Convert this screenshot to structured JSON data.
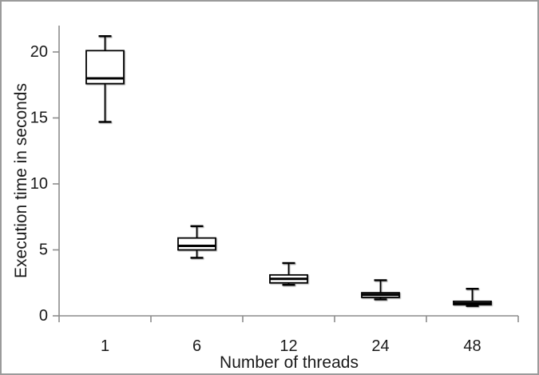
{
  "chart_data": {
    "type": "box",
    "title": "",
    "xlabel": "Number of threads",
    "ylabel": "Execution time in seconds",
    "categories": [
      "1",
      "6",
      "12",
      "24",
      "48"
    ],
    "y_ticks": [
      0,
      5,
      10,
      15,
      20
    ],
    "ylim": [
      0,
      22
    ],
    "grid": false,
    "legend": false,
    "series": [
      {
        "name": "execution-time",
        "boxes": [
          {
            "category": "1",
            "min": 14.7,
            "q1": 17.6,
            "median": 18.0,
            "q3": 20.1,
            "max": 21.2
          },
          {
            "category": "6",
            "min": 4.4,
            "q1": 5.0,
            "median": 5.3,
            "q3": 5.9,
            "max": 6.8
          },
          {
            "category": "12",
            "min": 2.35,
            "q1": 2.5,
            "median": 2.8,
            "q3": 3.1,
            "max": 4.0
          },
          {
            "category": "24",
            "min": 1.25,
            "q1": 1.4,
            "median": 1.6,
            "q3": 1.75,
            "max": 2.7
          },
          {
            "category": "48",
            "min": 0.75,
            "q1": 0.85,
            "median": 0.95,
            "q3": 1.1,
            "max": 2.05
          }
        ]
      }
    ],
    "colors": {
      "box_fill": "#ffffff",
      "box_line": "#000000",
      "axis": "#8c8c8c",
      "text": "#1a1a1a",
      "frame_border": "#9b9b9b",
      "background": "#ffffff"
    }
  }
}
